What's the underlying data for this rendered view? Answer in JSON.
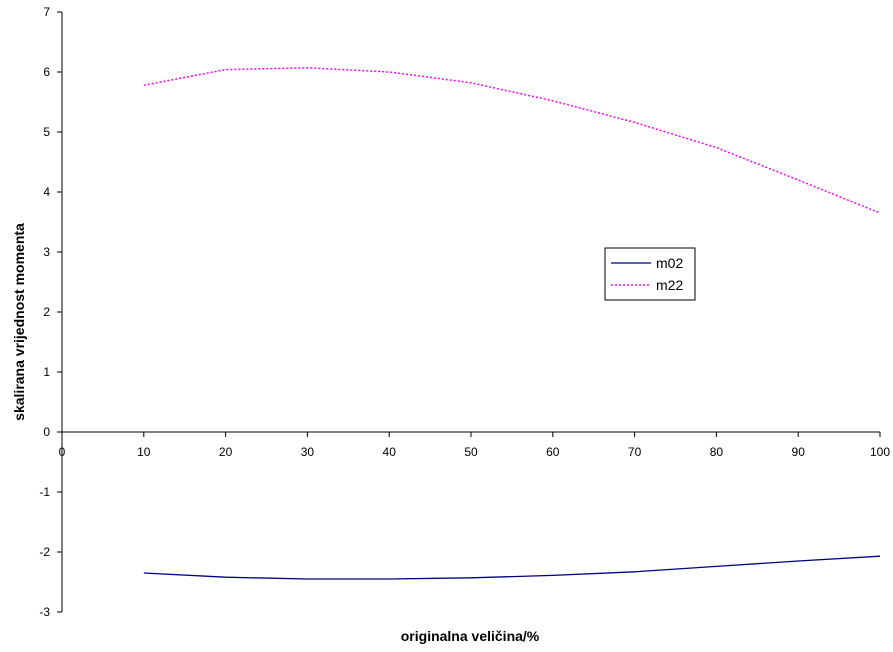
{
  "chart_data": {
    "type": "line",
    "title": "",
    "xlabel": "originalna veličina/%",
    "ylabel": "skalirana vrijednost momenta",
    "xlim": [
      0,
      100
    ],
    "ylim": [
      -3,
      7
    ],
    "x_ticks": [
      "0",
      "10",
      "20",
      "30",
      "40",
      "50",
      "60",
      "70",
      "80",
      "90",
      "100"
    ],
    "y_ticks": [
      "-3",
      "-2",
      "-1",
      "0",
      "1",
      "2",
      "3",
      "4",
      "5",
      "6",
      "7"
    ],
    "grid": false,
    "legend_position": "center-right",
    "x": [
      10,
      20,
      30,
      40,
      50,
      60,
      70,
      80,
      90,
      100
    ],
    "series": [
      {
        "name": "m02",
        "color": "#000080",
        "style": "solid",
        "values": [
          -2.35,
          -2.42,
          -2.45,
          -2.45,
          -2.43,
          -2.39,
          -2.33,
          -2.24,
          -2.15,
          -2.07
        ]
      },
      {
        "name": "m22",
        "color": "#ff00ff",
        "style": "dotted",
        "values": [
          5.78,
          6.04,
          6.07,
          6.0,
          5.82,
          5.52,
          5.16,
          4.74,
          4.2,
          3.65
        ]
      }
    ]
  }
}
